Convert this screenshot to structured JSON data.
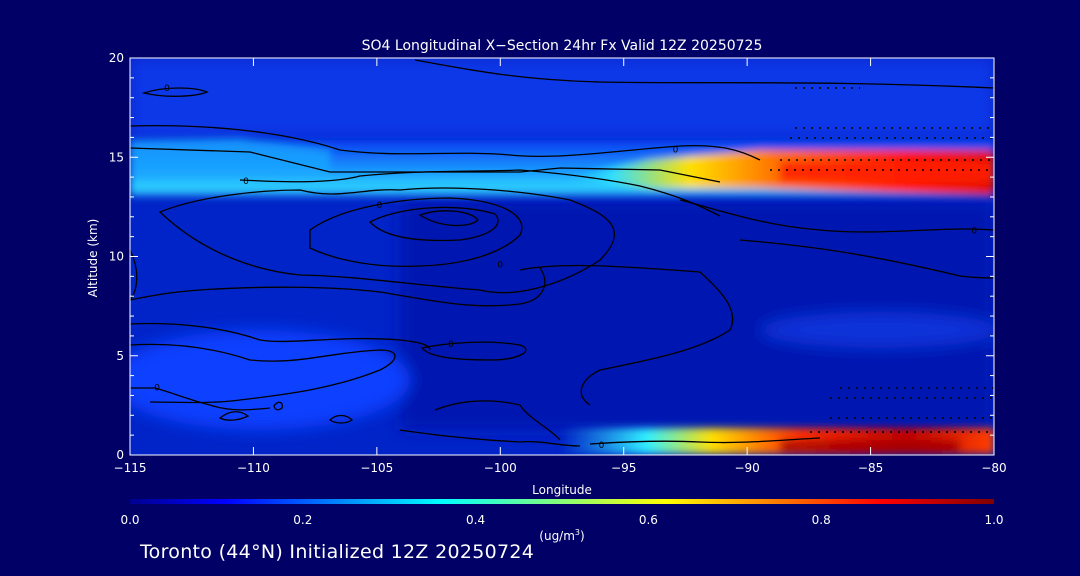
{
  "chart_data": {
    "type": "heatmap",
    "title": "SO4 Longitudinal X−Section 24hr  Fx Valid 12Z 20250725",
    "xlabel": "Longitude",
    "ylabel": "Altitude (km)",
    "xlim": [
      -115,
      -80
    ],
    "ylim": [
      0,
      20
    ],
    "xticks": [
      -115,
      -110,
      -105,
      -100,
      -95,
      -90,
      -85,
      -80
    ],
    "xtick_labels": [
      "−115",
      "−110",
      "−105",
      "−100",
      "−95",
      "−90",
      "−85",
      "−80"
    ],
    "yticks": [
      0,
      5,
      10,
      15,
      20
    ],
    "ytick_labels": [
      "0",
      "5",
      "10",
      "15",
      "20"
    ],
    "colorbar": {
      "label_prefix": "(ug/m",
      "label_sup": "3",
      "label_suffix": ")",
      "range": [
        0.0,
        1.0
      ],
      "ticks": [
        0.0,
        0.2,
        0.4,
        0.6,
        0.8,
        1.0
      ],
      "tick_labels": [
        "0.0",
        "0.2",
        "0.4",
        "0.6",
        "0.8",
        "1.0"
      ],
      "colormap": "jet"
    },
    "features": [
      {
        "name": "upper plume",
        "lon": [
          -94,
          -80
        ],
        "alt": [
          13.5,
          15.3
        ],
        "value": 0.85
      },
      {
        "name": "broad mid-tropospheric layer",
        "lon": [
          -115,
          -80
        ],
        "alt": [
          13,
          15.5
        ],
        "value": 0.25
      },
      {
        "name": "surface plume",
        "lon": [
          -90,
          -80
        ],
        "alt": [
          0,
          1
        ],
        "value": 0.95
      }
    ],
    "contour_labels": [
      {
        "text": "0",
        "lon": -113.5,
        "alt": 18.5
      },
      {
        "text": "0",
        "lon": -92.9,
        "alt": 15.4
      },
      {
        "text": "0",
        "lon": -110.3,
        "alt": 13.8
      },
      {
        "text": "0",
        "lon": -104.9,
        "alt": 12.6
      },
      {
        "text": "0",
        "lon": -80.8,
        "alt": 11.3
      },
      {
        "text": "0",
        "lon": -100.0,
        "alt": 9.6
      },
      {
        "text": "0",
        "lon": -102.0,
        "alt": 5.6
      },
      {
        "text": "0",
        "lon": -113.9,
        "alt": 3.4
      },
      {
        "text": "0",
        "lon": -95.9,
        "alt": 0.5
      }
    ]
  },
  "footer": {
    "station": "Toronto (44°N) Initialized 12Z 20250724"
  },
  "colors": {
    "background": "#000066",
    "text": "#ffffff",
    "contour": "#000000"
  }
}
